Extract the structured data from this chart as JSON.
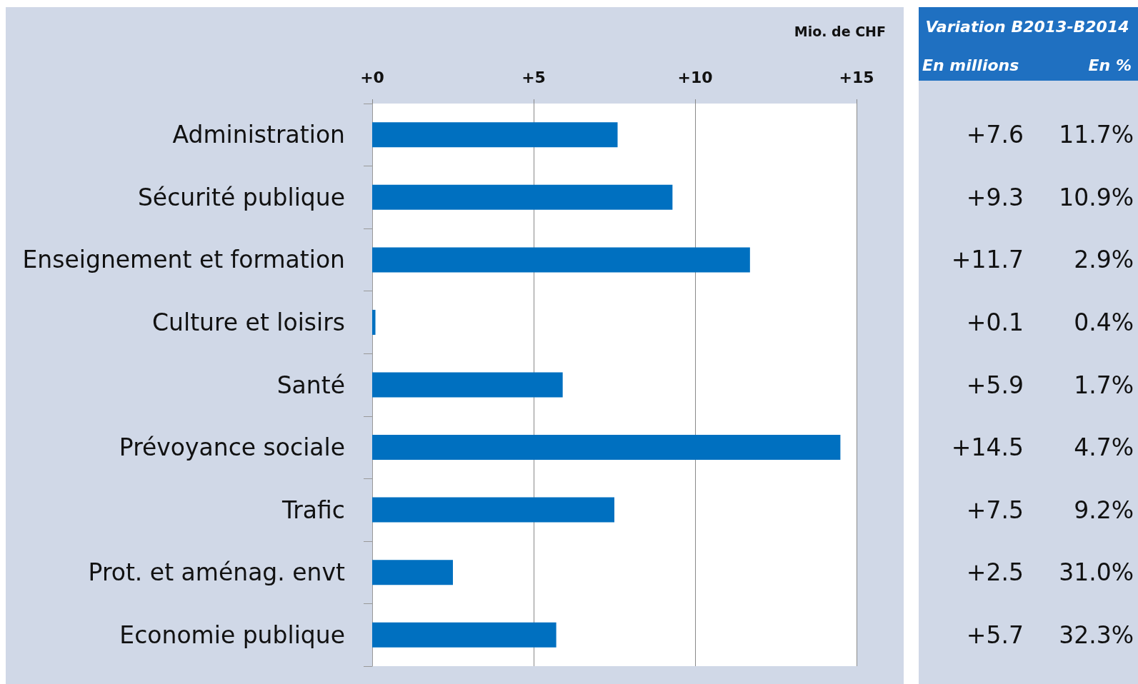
{
  "chart_data": {
    "type": "bar",
    "orientation": "horizontal",
    "xlabel": "Mio. de CHF",
    "categories": [
      "Administration",
      "Sécurité publique",
      "Enseignement et formation",
      "Culture et loisirs",
      "Santé",
      "Prévoyance sociale",
      "Trafic",
      "Prot. et aménag. envt",
      "Economie publique"
    ],
    "values": [
      7.6,
      9.3,
      11.7,
      0.1,
      5.9,
      14.5,
      7.5,
      2.5,
      5.7
    ],
    "value_labels": [
      "+7.6",
      "+9.3",
      "+11.7",
      "+0.1",
      "+5.9",
      "+14.5",
      "+7.5",
      "+2.5",
      "+5.7"
    ],
    "color": "#0070c0",
    "xlim": [
      0,
      15
    ],
    "xticks": [
      {
        "value": 0,
        "label": "+0"
      },
      {
        "value": 5,
        "label": "+5"
      },
      {
        "value": 10,
        "label": "+10"
      },
      {
        "value": 15,
        "label": "+15"
      }
    ],
    "grid": "x",
    "annotations": [
      "Variation B2013-B2014",
      "En millions",
      "En %",
      "11.7%",
      "10.9%",
      "2.9%",
      "0.4%",
      "1.7%",
      "4.7%",
      "9.2%",
      "31.0%",
      "32.3%"
    ]
  }
}
